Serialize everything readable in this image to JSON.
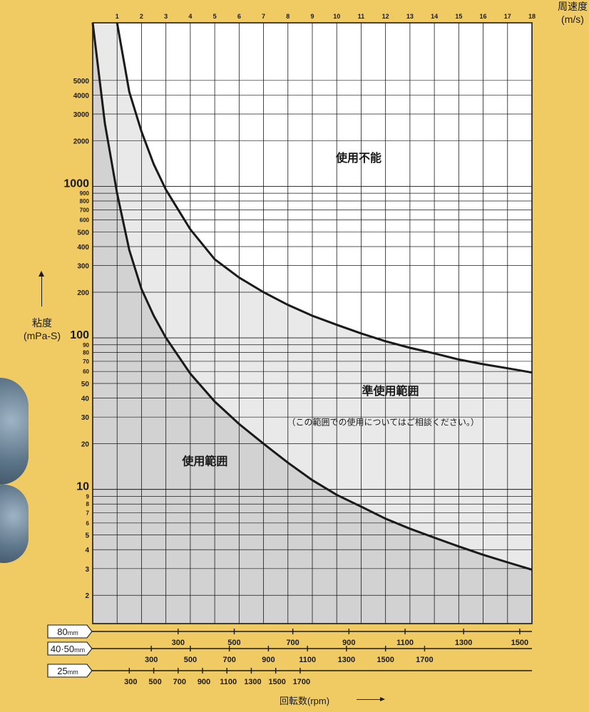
{
  "chart_data": {
    "type": "line",
    "x_top": {
      "label": "周速度",
      "unit": "(m/s)",
      "ticks": [
        1,
        2,
        3,
        4,
        5,
        6,
        7,
        8,
        9,
        10,
        11,
        12,
        13,
        14,
        15,
        16,
        17,
        18
      ],
      "range": [
        0,
        18
      ]
    },
    "y_axis": {
      "label": "粘度",
      "unit": "(mPa-S)",
      "scale": "log",
      "range": [
        1.3,
        12000
      ],
      "major_ticks": [
        {
          "value": 1000,
          "label": "1000"
        },
        {
          "value": 100,
          "label": "100"
        },
        {
          "value": 10,
          "label": "10"
        }
      ],
      "minor_ticks": [
        {
          "value": 5000,
          "label": "5000"
        },
        {
          "value": 4000,
          "label": "4000"
        },
        {
          "value": 3000,
          "label": "3000"
        },
        {
          "value": 2000,
          "label": "2000"
        },
        {
          "value": 900,
          "label": "900"
        },
        {
          "value": 800,
          "label": "800"
        },
        {
          "value": 700,
          "label": "700"
        },
        {
          "value": 600,
          "label": "600"
        },
        {
          "value": 500,
          "label": "500"
        },
        {
          "value": 400,
          "label": "400"
        },
        {
          "value": 300,
          "label": "300"
        },
        {
          "value": 200,
          "label": "200"
        },
        {
          "value": 90,
          "label": "90"
        },
        {
          "value": 80,
          "label": "80"
        },
        {
          "value": 70,
          "label": "70"
        },
        {
          "value": 60,
          "label": "60"
        },
        {
          "value": 50,
          "label": "50"
        },
        {
          "value": 40,
          "label": "40"
        },
        {
          "value": 30,
          "label": "30"
        },
        {
          "value": 20,
          "label": "20"
        },
        {
          "value": 9,
          "label": "9"
        },
        {
          "value": 8,
          "label": "8"
        },
        {
          "value": 7,
          "label": "7"
        },
        {
          "value": 6,
          "label": "6"
        },
        {
          "value": 5,
          "label": "5"
        },
        {
          "value": 4,
          "label": "4"
        },
        {
          "value": 3,
          "label": "3"
        },
        {
          "value": 2,
          "label": "2"
        }
      ]
    },
    "series": [
      {
        "x": [
          0,
          0.5,
          1,
          1.5,
          2,
          2.5,
          3,
          4,
          5,
          6,
          7,
          8,
          9,
          10,
          11,
          12,
          13,
          14,
          15,
          16,
          17,
          18
        ],
        "y": [
          12000,
          2600,
          900,
          380,
          210,
          140,
          100,
          58,
          38,
          27,
          20,
          15,
          11.5,
          9.2,
          7.7,
          6.4,
          5.5,
          4.8,
          4.2,
          3.7,
          3.3,
          2.95
        ]
      },
      {
        "x": [
          1,
          1.5,
          2,
          2.5,
          3,
          4,
          5,
          6,
          7,
          8,
          9,
          10,
          11,
          12,
          13,
          14,
          15,
          16,
          17,
          18
        ],
        "y": [
          12000,
          4200,
          2300,
          1400,
          950,
          520,
          330,
          250,
          200,
          165,
          140,
          122,
          107,
          95,
          86,
          79,
          72,
          67,
          63,
          59
        ]
      }
    ],
    "regions": {
      "unusable": "使用不能",
      "conditional": "準使用範囲",
      "conditional_note": "（この範囲での使用についてはご相談ください。）",
      "usable": "使用範囲"
    },
    "colors": {
      "background": "#f0cb63",
      "usable_fill": "#d2d2d2",
      "conditional_fill": "#e9e9e9",
      "unusable_fill": "#ffffff",
      "curve": "#1a1a1a",
      "grid": "#1a1a1a"
    },
    "rpm_scales": [
      {
        "label": "80",
        "unit": "mm",
        "ticks": [
          {
            "rpm": 300,
            "label": "300"
          },
          {
            "rpm": 500,
            "label": "500"
          },
          {
            "rpm": 700,
            "label": "700"
          },
          {
            "rpm": 900,
            "label": "900"
          },
          {
            "rpm": 1100,
            "label": "1100"
          },
          {
            "rpm": 1300,
            "label": "1300"
          },
          {
            "rpm": 1500,
            "label": "1500"
          }
        ],
        "speed_at_tick": [
          3.5,
          5.8,
          8.2,
          10.5,
          12.8,
          15.2,
          17.5
        ]
      },
      {
        "label": "40·50",
        "unit": "mm",
        "ticks": [
          {
            "rpm": 300,
            "label": "300"
          },
          {
            "rpm": 500,
            "label": "500"
          },
          {
            "rpm": 700,
            "label": "700"
          },
          {
            "rpm": 900,
            "label": "900"
          },
          {
            "rpm": 1100,
            "label": "1100"
          },
          {
            "rpm": 1300,
            "label": "1300"
          },
          {
            "rpm": 1500,
            "label": "1500"
          },
          {
            "rpm": 1700,
            "label": "1700"
          }
        ],
        "speed_at_tick": [
          2.4,
          4.0,
          5.6,
          7.2,
          8.8,
          10.4,
          12.0,
          13.6
        ]
      },
      {
        "label": "25",
        "unit": "mm",
        "ticks": [
          {
            "rpm": 300,
            "label": "300"
          },
          {
            "rpm": 500,
            "label": "500"
          },
          {
            "rpm": 700,
            "label": "700"
          },
          {
            "rpm": 900,
            "label": "900"
          },
          {
            "rpm": 1100,
            "label": "1100"
          },
          {
            "rpm": 1300,
            "label": "1300"
          },
          {
            "rpm": 1500,
            "label": "1500"
          },
          {
            "rpm": 1700,
            "label": "1700"
          }
        ],
        "speed_at_tick": [
          1.5,
          2.5,
          3.5,
          4.5,
          5.5,
          6.5,
          7.5,
          8.5
        ]
      }
    ],
    "x_bottom_label": "回転数(rpm)"
  }
}
